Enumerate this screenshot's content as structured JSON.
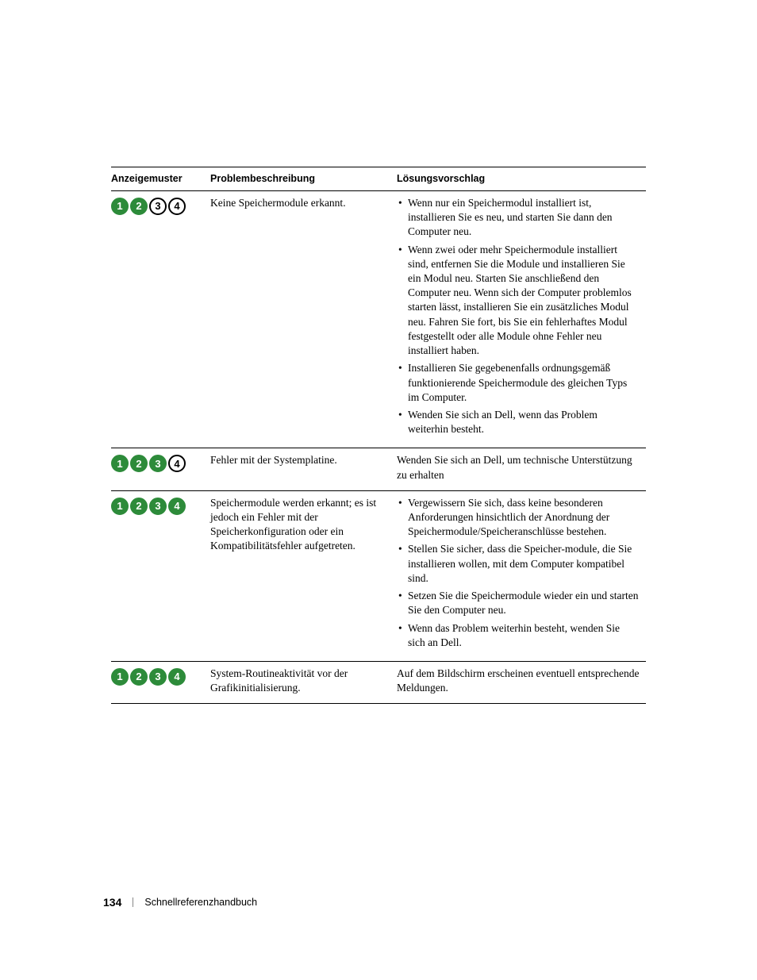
{
  "headers": {
    "pattern": "Anzeigemuster",
    "problem": "Problembeschreibung",
    "solution": "Lösungsvorschlag"
  },
  "led_colors": {
    "on": "#2d8b3a",
    "off": "#ffffff",
    "border_off": "#000000"
  },
  "rows": [
    {
      "leds": [
        true,
        true,
        false,
        false
      ],
      "problem": "Keine Speichermodule erkannt.",
      "solutions": [
        "Wenn nur ein Speichermodul installiert ist, installieren Sie es neu, und starten Sie dann den Computer neu.",
        "Wenn zwei oder mehr Speichermodule installiert sind, entfernen Sie die Module und installieren Sie ein Modul neu. Starten Sie anschließend den Computer neu. Wenn sich der Computer problemlos starten lässt, installieren Sie ein zusätzliches Modul neu. Fahren Sie fort, bis Sie ein fehlerhaftes Modul festgestellt oder alle Module ohne Fehler neu installiert haben.",
        "Installieren Sie gegebenenfalls ordnungsgemäß funktionierende Speichermodule des gleichen Typs im Computer.",
        "Wenden Sie sich an Dell, wenn das Problem weiterhin besteht."
      ],
      "bulleted": true
    },
    {
      "leds": [
        true,
        true,
        true,
        false
      ],
      "problem": "Fehler mit der Systemplatine.",
      "solutions": [
        "Wenden Sie sich an Dell, um technische Unterstützung zu erhalten"
      ],
      "bulleted": false
    },
    {
      "leds": [
        true,
        true,
        true,
        true
      ],
      "problem": "Speichermodule werden erkannt; es ist jedoch ein Fehler mit der Speicherkonfiguration oder ein Kompatibilitätsfehler aufgetreten.",
      "solutions": [
        "Vergewissern Sie sich, dass keine besonderen Anforderungen hinsichtlich der Anordnung der Speichermodule/Speicheranschlüsse bestehen.",
        "Stellen Sie sicher, dass die Speicher-module, die Sie installieren wollen, mit dem Computer kompatibel sind.",
        "Setzen Sie die Speichermodule wieder ein und starten Sie den Computer neu.",
        "Wenn das Problem weiterhin besteht, wenden Sie sich an Dell."
      ],
      "bulleted": true
    },
    {
      "leds": [
        true,
        true,
        true,
        true
      ],
      "problem": "System-Routineaktivität vor der Grafikinitialisierung.",
      "solutions": [
        "Auf dem Bildschirm erscheinen eventuell entsprechende Meldungen."
      ],
      "bulleted": false
    }
  ],
  "footer": {
    "page": "134",
    "title": "Schnellreferenzhandbuch"
  }
}
